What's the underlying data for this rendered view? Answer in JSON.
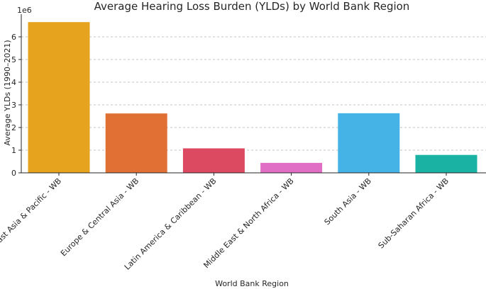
{
  "chart_data": {
    "type": "bar",
    "title": "Average Hearing Loss Burden (YLDs) by World Bank Region",
    "xlabel": "World Bank Region",
    "ylabel": "Average YLDs (1990–2021)",
    "y_offset_label": "1e6",
    "ylim": [
      0,
      7000000
    ],
    "yticks": [
      0,
      1,
      2,
      3,
      4,
      5,
      6
    ],
    "grid": true,
    "categories": [
      "East Asia & Pacific - WB",
      "Europe & Central Asia - WB",
      "Latin America & Caribbean - WB",
      "Middle East & North Africa - WB",
      "South Asia - WB",
      "Sub-Saharan Africa - WB"
    ],
    "values": [
      6650000,
      2620000,
      1080000,
      440000,
      2630000,
      790000
    ],
    "colors": [
      "#e6a31e",
      "#e07034",
      "#dc4a62",
      "#e06ec4",
      "#45b3e5",
      "#1ab3a3"
    ]
  }
}
